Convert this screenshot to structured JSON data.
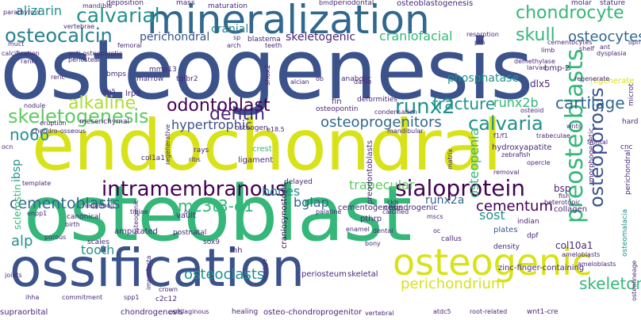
{
  "palette": {
    "purple": "#440154",
    "indigo": "#3b528b",
    "teal": "#21918c",
    "green": "#5ec962",
    "yellow": "#d8e219",
    "blue": "#31688e",
    "lime": "#addc30",
    "dark": "#482878",
    "mint": "#35b779",
    "cyan": "#26828e"
  },
  "words": [
    "osteogenesis",
    "endochondral",
    "osteoblast",
    "ossification",
    "mineralization",
    "osteogenic",
    "intramembranous",
    "sialoprotein",
    "skeletogenesis",
    "calvarial",
    "osteocalcin",
    "runx2",
    "alkaline",
    "calvaria",
    "chondrocyte",
    "cementoblasts",
    "preosteoblasts",
    "osteoporosis",
    "osteoprogenitors",
    "odontoblast",
    "dentin",
    "cartilage",
    "fracture",
    "skull",
    "osteocytes",
    "skeleton",
    "perichondrium",
    "cementum",
    "trabecular",
    "runx2b",
    "hypertrophic",
    "mc3t3-e1",
    "bglap",
    "bones",
    "no66",
    "alizarin",
    "osteoclasts",
    "tooth",
    "alp",
    "sost",
    "craniofacial",
    "skeletogenic",
    "perichondral",
    "cranial",
    "osteopenia",
    "phosphatase",
    "runx2a",
    "periosteum",
    "collagen",
    "plates",
    "ibsp",
    "sclerostin",
    "craniosynostosis",
    "preodontoblasts",
    "chondrogenic",
    "cementogenesis",
    "amputated",
    "hydroxyapatite",
    "bsp",
    "col10a1",
    "osteomalacia",
    "dlx5",
    "bmp-2",
    "vault",
    "ligament",
    "crest",
    "lrp5",
    "mmp13",
    "tgfbr2",
    "shox2",
    "sox9",
    "ihh",
    "pthrp",
    "fin",
    "deformities",
    "osteopontin",
    "condensation",
    "mandibular",
    "anabolic",
    "bmps",
    "blastema",
    "marrow",
    "skeletal",
    "delayed",
    "osteogen",
    "mesenchymal",
    "canonical",
    "postnatal",
    "scales",
    "cnc",
    "indian",
    "dpf",
    "zinc-finger-containing",
    "morphogenetic",
    "callus",
    "density",
    "regenerate",
    "hard",
    "microt",
    "perichondral",
    "eruption",
    "nodule",
    "col1a1",
    "rays",
    "supraorbital",
    "chondrogenesis",
    "healing",
    "osteo-chondroprogenitor",
    "vertebral",
    "wnt1-cre",
    "mass",
    "maturation",
    "periodontal",
    "osteoblastogenesis",
    "molar",
    "stature",
    "deposition",
    "mandible",
    "bmd",
    "parathyroid",
    "vertebrae",
    "muct",
    "femoral",
    "calcification",
    "anti-osteoporotic",
    "cementocytes",
    "shelf",
    "resorption",
    "pth",
    "limb",
    "rankl",
    "reric",
    "periosteal",
    "arch",
    "teeth",
    "dysplasia",
    "ant",
    "opn",
    "larvae",
    "demethylase",
    "regenerate",
    "ob",
    "alcian",
    "danio",
    "hedgehog",
    "enamel",
    "osteoid",
    "opercle",
    "fish",
    "zebrafish",
    "heterotopic",
    "tibiae",
    "birth",
    "oi",
    "porous",
    "joints",
    "ihha",
    "commitment",
    "spp1",
    "crown",
    "imperfecta",
    "cartilaginous",
    "c2c12",
    "ribs",
    "ameloblasts",
    "osteolineage",
    "template",
    "enpp1",
    "matrix",
    "removal",
    "calcified",
    "lineage",
    "regenerative",
    "palatine",
    "dental",
    "bony",
    "oc",
    "wnts",
    "ocn",
    "mscs",
    "trabeculae",
    "f1/f1",
    "atdc5",
    "ameloblasts",
    "e18.5",
    "frontal",
    "ckb",
    "sp",
    "root-related",
    "chondro-osseous",
    "lrp5",
    "osteogenic"
  ]
}
